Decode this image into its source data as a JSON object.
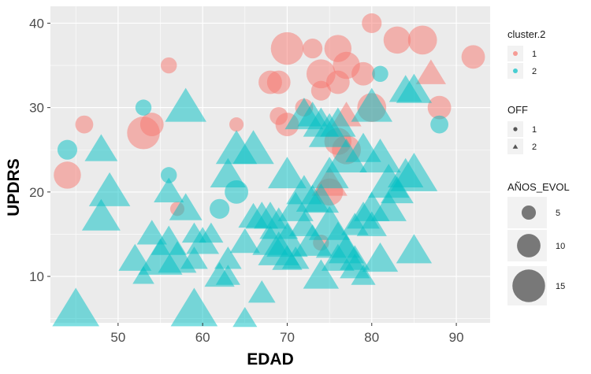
{
  "chart_data": {
    "type": "scatter",
    "xlabel": "EDAD",
    "ylabel": "UPDRS",
    "xlim": [
      42,
      94
    ],
    "ylim": [
      4.5,
      42
    ],
    "x_ticks": [
      50,
      60,
      70,
      80,
      90
    ],
    "y_ticks": [
      10,
      20,
      30,
      40
    ],
    "grid": true,
    "legend_position": "right",
    "colors": {
      "cluster1": "#F8766D",
      "cluster2": "#00BFC4",
      "panel": "#EBEBEB",
      "grid": "#FFFFFF"
    },
    "legends": [
      {
        "title": "cluster.2",
        "items": [
          {
            "label": "1",
            "color": "#F8766D"
          },
          {
            "label": "2",
            "color": "#00BFC4"
          }
        ]
      },
      {
        "title": "OFF",
        "items": [
          {
            "label": "1",
            "shape": "circle"
          },
          {
            "label": "2",
            "shape": "triangle"
          }
        ]
      },
      {
        "title": "AÑOS_EVOL",
        "items": [
          {
            "label": "5",
            "size": 5
          },
          {
            "label": "10",
            "size": 10
          },
          {
            "label": "15",
            "size": 15
          }
        ]
      }
    ],
    "series": [
      {
        "name": "cluster 1",
        "points": [
          {
            "x": 44,
            "y": 22,
            "off": 1,
            "evol": 12
          },
          {
            "x": 46,
            "y": 28,
            "off": 1,
            "evol": 7
          },
          {
            "x": 53,
            "y": 27,
            "off": 1,
            "evol": 15
          },
          {
            "x": 54,
            "y": 28,
            "off": 1,
            "evol": 10
          },
          {
            "x": 56,
            "y": 35,
            "off": 1,
            "evol": 6
          },
          {
            "x": 57,
            "y": 18,
            "off": 1,
            "evol": 5
          },
          {
            "x": 64,
            "y": 28,
            "off": 1,
            "evol": 5
          },
          {
            "x": 68,
            "y": 33,
            "off": 1,
            "evol": 10
          },
          {
            "x": 69,
            "y": 33,
            "off": 1,
            "evol": 10
          },
          {
            "x": 69,
            "y": 29,
            "off": 1,
            "evol": 7
          },
          {
            "x": 70,
            "y": 37,
            "off": 1,
            "evol": 15
          },
          {
            "x": 70,
            "y": 28,
            "off": 1,
            "evol": 10
          },
          {
            "x": 72,
            "y": 30,
            "off": 1,
            "evol": 7
          },
          {
            "x": 73,
            "y": 37,
            "off": 1,
            "evol": 8
          },
          {
            "x": 74,
            "y": 34,
            "off": 1,
            "evol": 13
          },
          {
            "x": 74,
            "y": 32,
            "off": 1,
            "evol": 8
          },
          {
            "x": 76,
            "y": 37,
            "off": 1,
            "evol": 12
          },
          {
            "x": 76,
            "y": 33,
            "off": 1,
            "evol": 10
          },
          {
            "x": 77,
            "y": 35,
            "off": 1,
            "evol": 12
          },
          {
            "x": 75,
            "y": 20,
            "off": 1,
            "evol": 12
          },
          {
            "x": 76,
            "y": 26,
            "off": 1,
            "evol": 12
          },
          {
            "x": 77,
            "y": 25,
            "off": 1,
            "evol": 13
          },
          {
            "x": 79,
            "y": 34,
            "off": 1,
            "evol": 10
          },
          {
            "x": 80,
            "y": 40,
            "off": 1,
            "evol": 8
          },
          {
            "x": 80,
            "y": 30,
            "off": 1,
            "evol": 13
          },
          {
            "x": 83,
            "y": 38,
            "off": 1,
            "evol": 12
          },
          {
            "x": 86,
            "y": 38,
            "off": 1,
            "evol": 13
          },
          {
            "x": 88,
            "y": 30,
            "off": 1,
            "evol": 10
          },
          {
            "x": 92,
            "y": 36,
            "off": 1,
            "evol": 10
          },
          {
            "x": 74,
            "y": 14,
            "off": 1,
            "evol": 6
          },
          {
            "x": 75,
            "y": 21,
            "off": 2,
            "evol": 10
          },
          {
            "x": 77,
            "y": 29,
            "off": 2,
            "evol": 8
          },
          {
            "x": 87,
            "y": 34,
            "off": 2,
            "evol": 8
          }
        ]
      },
      {
        "name": "cluster 2",
        "points": [
          {
            "x": 44,
            "y": 25,
            "off": 1,
            "evol": 8
          },
          {
            "x": 53,
            "y": 30,
            "off": 1,
            "evol": 6
          },
          {
            "x": 56,
            "y": 22,
            "off": 1,
            "evol": 6
          },
          {
            "x": 62,
            "y": 18,
            "off": 1,
            "evol": 8
          },
          {
            "x": 64,
            "y": 20,
            "off": 1,
            "evol": 10
          },
          {
            "x": 81,
            "y": 34,
            "off": 1,
            "evol": 6
          },
          {
            "x": 88,
            "y": 28,
            "off": 1,
            "evol": 7
          },
          {
            "x": 45,
            "y": 6,
            "off": 2,
            "evol": 14
          },
          {
            "x": 48,
            "y": 25,
            "off": 2,
            "evol": 9
          },
          {
            "x": 48,
            "y": 17,
            "off": 2,
            "evol": 11
          },
          {
            "x": 49,
            "y": 20,
            "off": 2,
            "evol": 12
          },
          {
            "x": 52,
            "y": 12,
            "off": 2,
            "evol": 9
          },
          {
            "x": 53,
            "y": 10,
            "off": 2,
            "evol": 5
          },
          {
            "x": 54,
            "y": 15,
            "off": 2,
            "evol": 8
          },
          {
            "x": 55,
            "y": 12,
            "off": 2,
            "evol": 13
          },
          {
            "x": 56,
            "y": 20,
            "off": 2,
            "evol": 8
          },
          {
            "x": 56,
            "y": 14,
            "off": 2,
            "evol": 10
          },
          {
            "x": 57,
            "y": 12,
            "off": 2,
            "evol": 11
          },
          {
            "x": 58,
            "y": 18,
            "off": 2,
            "evol": 9
          },
          {
            "x": 58,
            "y": 30,
            "off": 2,
            "evol": 12
          },
          {
            "x": 59,
            "y": 6,
            "off": 2,
            "evol": 14
          },
          {
            "x": 59,
            "y": 15,
            "off": 2,
            "evol": 6
          },
          {
            "x": 60,
            "y": 14,
            "off": 2,
            "evol": 9
          },
          {
            "x": 59,
            "y": 12,
            "off": 2,
            "evol": 7
          },
          {
            "x": 62,
            "y": 10,
            "off": 2,
            "evol": 8
          },
          {
            "x": 63,
            "y": 12,
            "off": 2,
            "evol": 7
          },
          {
            "x": 63,
            "y": 10,
            "off": 2,
            "evol": 6
          },
          {
            "x": 63,
            "y": 22,
            "off": 2,
            "evol": 10
          },
          {
            "x": 64,
            "y": 25,
            "off": 2,
            "evol": 12
          },
          {
            "x": 65,
            "y": 14,
            "off": 2,
            "evol": 8
          },
          {
            "x": 65,
            "y": 5,
            "off": 2,
            "evol": 6
          },
          {
            "x": 66,
            "y": 25,
            "off": 2,
            "evol": 12
          },
          {
            "x": 66,
            "y": 17,
            "off": 2,
            "evol": 8
          },
          {
            "x": 67,
            "y": 8,
            "off": 2,
            "evol": 7
          },
          {
            "x": 67,
            "y": 17,
            "off": 2,
            "evol": 9
          },
          {
            "x": 68,
            "y": 17,
            "off": 2,
            "evol": 9
          },
          {
            "x": 68,
            "y": 14,
            "off": 2,
            "evol": 10
          },
          {
            "x": 69,
            "y": 16,
            "off": 2,
            "evol": 11
          },
          {
            "x": 69,
            "y": 13,
            "off": 2,
            "evol": 12
          },
          {
            "x": 70,
            "y": 22,
            "off": 2,
            "evol": 11
          },
          {
            "x": 70,
            "y": 14,
            "off": 2,
            "evol": 12
          },
          {
            "x": 70,
            "y": 12,
            "off": 2,
            "evol": 8
          },
          {
            "x": 71,
            "y": 18,
            "off": 2,
            "evol": 10
          },
          {
            "x": 71,
            "y": 12,
            "off": 2,
            "evol": 7
          },
          {
            "x": 72,
            "y": 29,
            "off": 2,
            "evol": 11
          },
          {
            "x": 72,
            "y": 20,
            "off": 2,
            "evol": 10
          },
          {
            "x": 72,
            "y": 16,
            "off": 2,
            "evol": 8
          },
          {
            "x": 73,
            "y": 19,
            "off": 2,
            "evol": 9
          },
          {
            "x": 73,
            "y": 14,
            "off": 2,
            "evol": 11
          },
          {
            "x": 74,
            "y": 28,
            "off": 2,
            "evol": 10
          },
          {
            "x": 74,
            "y": 19,
            "off": 2,
            "evol": 10
          },
          {
            "x": 74,
            "y": 10,
            "off": 2,
            "evol": 10
          },
          {
            "x": 75,
            "y": 27,
            "off": 2,
            "evol": 12
          },
          {
            "x": 75,
            "y": 16,
            "off": 2,
            "evol": 12
          },
          {
            "x": 75,
            "y": 22,
            "off": 2,
            "evol": 11
          },
          {
            "x": 76,
            "y": 28,
            "off": 2,
            "evol": 10
          },
          {
            "x": 76,
            "y": 14,
            "off": 2,
            "evol": 13
          },
          {
            "x": 76,
            "y": 12,
            "off": 2,
            "evol": 9
          },
          {
            "x": 77,
            "y": 24,
            "off": 2,
            "evol": 12
          },
          {
            "x": 77,
            "y": 13,
            "off": 2,
            "evol": 10
          },
          {
            "x": 78,
            "y": 12,
            "off": 2,
            "evol": 8
          },
          {
            "x": 78,
            "y": 16,
            "off": 2,
            "evol": 7
          },
          {
            "x": 78,
            "y": 11,
            "off": 2,
            "evol": 8
          },
          {
            "x": 79,
            "y": 25,
            "off": 2,
            "evol": 10
          },
          {
            "x": 79,
            "y": 17,
            "off": 2,
            "evol": 9
          },
          {
            "x": 79,
            "y": 10,
            "off": 2,
            "evol": 6
          },
          {
            "x": 80,
            "y": 18,
            "off": 2,
            "evol": 10
          },
          {
            "x": 80,
            "y": 30,
            "off": 2,
            "evol": 12
          },
          {
            "x": 80,
            "y": 16,
            "off": 2,
            "evol": 8
          },
          {
            "x": 81,
            "y": 12,
            "off": 2,
            "evol": 10
          },
          {
            "x": 81,
            "y": 24,
            "off": 2,
            "evol": 12
          },
          {
            "x": 82,
            "y": 21,
            "off": 2,
            "evol": 12
          },
          {
            "x": 82,
            "y": 18,
            "off": 2,
            "evol": 10
          },
          {
            "x": 83,
            "y": 20,
            "off": 2,
            "evol": 9
          },
          {
            "x": 84,
            "y": 22,
            "off": 2,
            "evol": 10
          },
          {
            "x": 84,
            "y": 32,
            "off": 2,
            "evol": 9
          },
          {
            "x": 85,
            "y": 32,
            "off": 2,
            "evol": 10
          },
          {
            "x": 85,
            "y": 22,
            "off": 2,
            "evol": 14
          },
          {
            "x": 85,
            "y": 13,
            "off": 2,
            "evol": 10
          },
          {
            "x": 73,
            "y": 29,
            "off": 2,
            "evol": 8
          },
          {
            "x": 61,
            "y": 15,
            "off": 2,
            "evol": 6
          }
        ]
      }
    ]
  }
}
